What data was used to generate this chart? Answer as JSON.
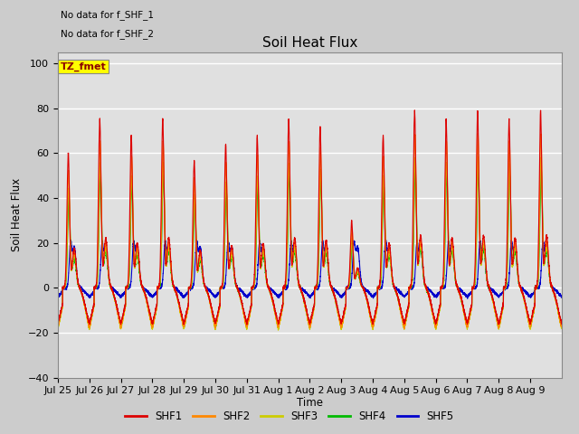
{
  "title": "Soil Heat Flux",
  "ylabel": "Soil Heat Flux",
  "xlabel": "Time",
  "ylim": [
    -40,
    105
  ],
  "yticks": [
    -40,
    -20,
    0,
    20,
    40,
    60,
    80,
    100
  ],
  "annotation_text1": "No data for f_SHF_1",
  "annotation_text2": "No data for f_SHF_2",
  "legend_box_label": "TZ_fmet",
  "legend_entries": [
    "SHF1",
    "SHF2",
    "SHF3",
    "SHF4",
    "SHF5"
  ],
  "line_colors": [
    "#dd0000",
    "#ff8800",
    "#cccc00",
    "#00bb00",
    "#0000cc"
  ],
  "background_color": "#cccccc",
  "plot_bg_color": "#e0e0e0",
  "n_days": 16,
  "xtick_labels": [
    "Jul 25",
    "Jul 26",
    "Jul 27",
    "Jul 28",
    "Jul 29",
    "Jul 30",
    "Jul 31",
    "Aug 1",
    "Aug 2",
    "Aug 3",
    "Aug 4",
    "Aug 5",
    "Aug 6",
    "Aug 7",
    "Aug 8",
    "Aug 9"
  ]
}
